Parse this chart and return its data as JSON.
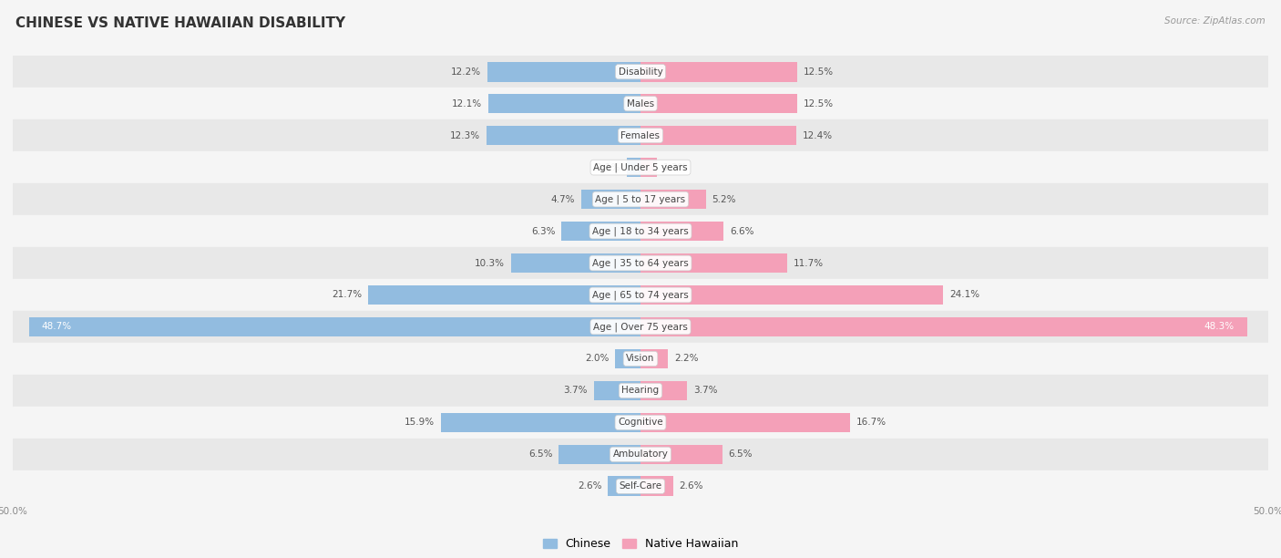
{
  "title": "CHINESE VS NATIVE HAWAIIAN DISABILITY",
  "source": "Source: ZipAtlas.com",
  "categories": [
    "Disability",
    "Males",
    "Females",
    "Age | Under 5 years",
    "Age | 5 to 17 years",
    "Age | 18 to 34 years",
    "Age | 35 to 64 years",
    "Age | 65 to 74 years",
    "Age | Over 75 years",
    "Vision",
    "Hearing",
    "Cognitive",
    "Ambulatory",
    "Self-Care"
  ],
  "chinese": [
    12.2,
    12.1,
    12.3,
    1.1,
    4.7,
    6.3,
    10.3,
    21.7,
    48.7,
    2.0,
    3.7,
    15.9,
    6.5,
    2.6
  ],
  "native_hawaiian": [
    12.5,
    12.5,
    12.4,
    1.3,
    5.2,
    6.6,
    11.7,
    24.1,
    48.3,
    2.2,
    3.7,
    16.7,
    6.5,
    2.6
  ],
  "chinese_color": "#92bce0",
  "native_hawaiian_color": "#f4a0b8",
  "chinese_label": "Chinese",
  "native_hawaiian_label": "Native Hawaiian",
  "max_value": 50.0,
  "bar_height": 0.62,
  "background_color": "#f5f5f5",
  "row_bg_light": "#f5f5f5",
  "row_bg_dark": "#e8e8e8",
  "title_fontsize": 11,
  "label_fontsize": 7.5,
  "value_fontsize": 7.5,
  "source_fontsize": 7.5
}
